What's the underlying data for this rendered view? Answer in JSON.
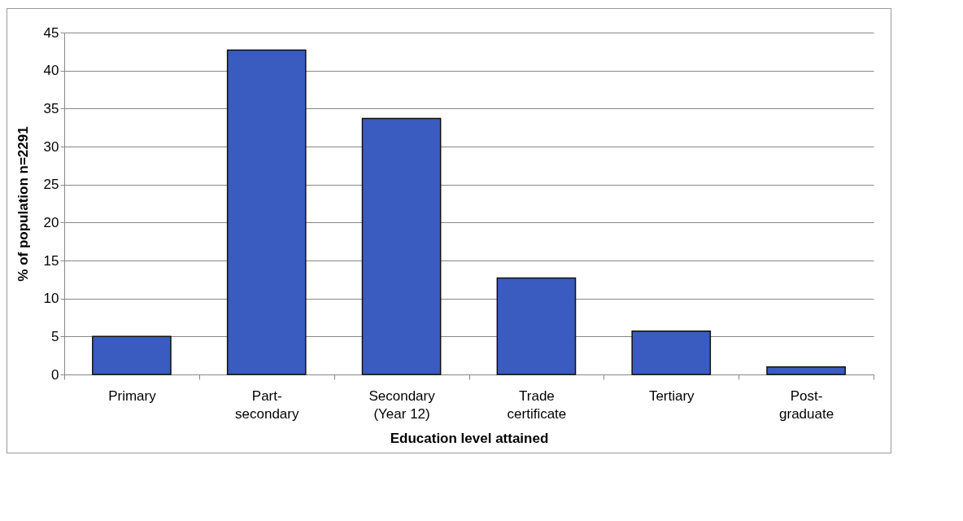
{
  "chart_data": {
    "type": "bar",
    "xlabel": "Education level attained",
    "ylabel": "% of population n=2291",
    "categories": [
      "Primary",
      "Part-\nsecondary",
      "Secondary\n(Year 12)",
      "Trade\ncertificate",
      "Tertiary",
      "Post-\ngraduate"
    ],
    "values": [
      5,
      42.7,
      33.7,
      12.7,
      5.7,
      1
    ],
    "color": "#3a5bbf",
    "ylim": [
      0,
      45
    ],
    "yticks": [
      0,
      5,
      10,
      15,
      20,
      25,
      30,
      35,
      40,
      45
    ],
    "grid": "y"
  }
}
